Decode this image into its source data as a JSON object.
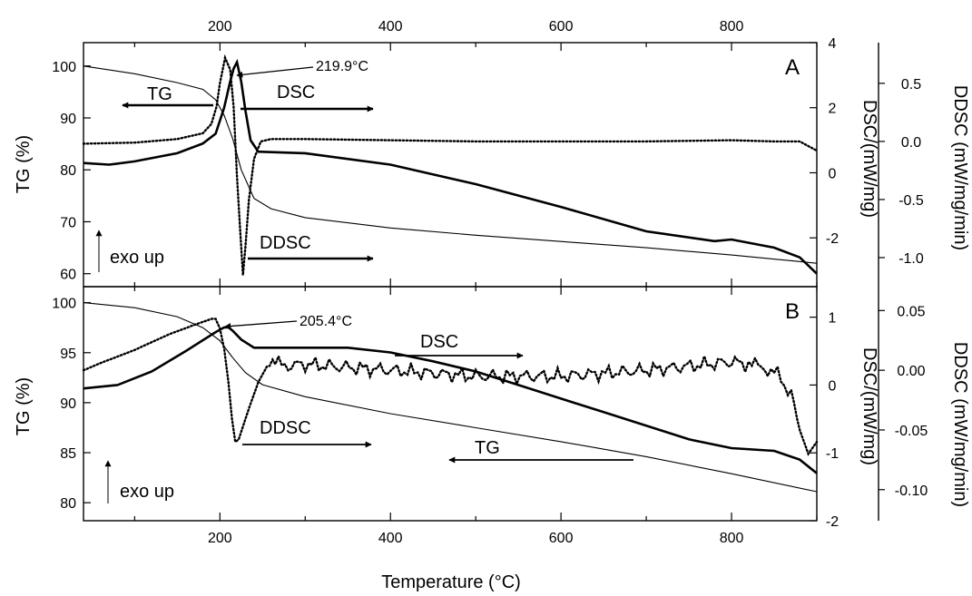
{
  "chart_data": {
    "type": "line",
    "xlabel": "Temperature (°C)",
    "x_top_ticks": [
      "200",
      "400",
      "600",
      "800"
    ],
    "x_bottom_ticks": [
      "200",
      "400",
      "600",
      "800"
    ],
    "xlim": [
      40,
      900
    ],
    "panels": [
      {
        "id": "A",
        "letter": "A",
        "left_axis": {
          "label": "TG (%)",
          "ticks": [
            "100",
            "90",
            "80",
            "70",
            "60"
          ],
          "ylim": [
            57.5,
            104.5
          ]
        },
        "right_axis": {
          "label": "DSC/(mW/mg)",
          "ticks": [
            "4",
            "2",
            "0",
            "-2"
          ],
          "ylim": [
            -3.5,
            4
          ]
        },
        "far_right_axis": {
          "label": "DDSC (mW/mg/min)",
          "ticks": [
            "0.5",
            "0.0",
            "-0.5",
            "-1.0"
          ],
          "ylim": [
            -1.25,
            0.85
          ]
        },
        "peak_label": "219.9°C",
        "exo_label": "exo up",
        "arrow_labels": {
          "tg": "TG",
          "dsc": "DSC",
          "ddsc": "DDSC"
        },
        "series": [
          {
            "name": "TG",
            "axis": "left",
            "style": "thin",
            "x": [
              40,
              100,
              150,
              180,
              195,
              205,
              215,
              225,
              240,
              260,
              300,
              400,
              500,
              600,
              700,
              800,
              900
            ],
            "y": [
              100,
              98.5,
              96.8,
              95.5,
              93.5,
              90.5,
              86,
              80,
              74.5,
              72.5,
              70.8,
              68.8,
              67.4,
              66.2,
              65,
              63.6,
              62
            ]
          },
          {
            "name": "DSC",
            "axis": "right",
            "style": "thick",
            "x": [
              40,
              70,
              100,
              150,
              180,
              195,
              205,
              212,
              216,
              220,
              225,
              230,
              236,
              245,
              300,
              400,
              500,
              600,
              700,
              780,
              800,
              850,
              880,
              900
            ],
            "y": [
              0.3,
              0.25,
              0.35,
              0.6,
              0.9,
              1.2,
              2.0,
              2.8,
              3.2,
              3.4,
              2.8,
              1.9,
              1.0,
              0.65,
              0.6,
              0.25,
              -0.35,
              -1.05,
              -1.8,
              -2.1,
              -2.05,
              -2.3,
              -2.6,
              -3.1
            ]
          },
          {
            "name": "DDSC",
            "axis": "far_right",
            "style": "dotted",
            "x": [
              40,
              100,
              150,
              180,
              190,
              196,
              200,
              206,
              212,
              216,
              220,
              224,
              227,
              230,
              234,
              240,
              248,
              260,
              300,
              400,
              500,
              600,
              700,
              800,
              850,
              880,
              900
            ],
            "y": [
              -0.02,
              -0.01,
              0.02,
              0.07,
              0.15,
              0.3,
              0.5,
              0.72,
              0.62,
              0.3,
              -0.3,
              -0.8,
              -1.15,
              -0.9,
              -0.5,
              -0.15,
              0.0,
              0.02,
              0.02,
              0.01,
              0.0,
              0.0,
              0.0,
              0.01,
              0.0,
              0.0,
              -0.08
            ]
          }
        ]
      },
      {
        "id": "B",
        "letter": "B",
        "left_axis": {
          "label": "TG (%)",
          "ticks": [
            "100",
            "95",
            "90",
            "85",
            "80"
          ],
          "ylim": [
            78.2,
            101.6
          ]
        },
        "right_axis": {
          "label": "DSC/(mW/mg)",
          "ticks": [
            "1",
            "0",
            "-1",
            "-2"
          ],
          "ylim": [
            -2,
            1.45
          ]
        },
        "far_right_axis": {
          "label": "DDSC (mW/mg/min)",
          "ticks": [
            "0.05",
            "0.00",
            "-0.05",
            "-0.10"
          ],
          "ylim": [
            -0.126,
            0.07
          ]
        },
        "peak_label": "205.4°C",
        "exo_label": "exo up",
        "arrow_labels": {
          "tg": "TG",
          "dsc": "DSC",
          "ddsc": "DDSC"
        },
        "series": [
          {
            "name": "TG",
            "axis": "left",
            "style": "thin",
            "x": [
              40,
              100,
              150,
              180,
              200,
              215,
              230,
              250,
              300,
              400,
              500,
              600,
              700,
              800,
              900
            ],
            "y": [
              100,
              99.5,
              98.6,
              97.5,
              96.2,
              94.5,
              93,
              91.8,
              90.6,
              88.9,
              87.5,
              86.1,
              84.6,
              82.9,
              81.1
            ]
          },
          {
            "name": "DSC",
            "axis": "right",
            "style": "thick",
            "x": [
              40,
              80,
              120,
              160,
              195,
              205,
              210,
              215,
              225,
              240,
              260,
              300,
              350,
              400,
              450,
              500,
              550,
              600,
              650,
              700,
              750,
              800,
              850,
              880,
              900
            ],
            "y": [
              -0.05,
              0.0,
              0.2,
              0.5,
              0.78,
              0.85,
              0.85,
              0.8,
              0.67,
              0.55,
              0.55,
              0.55,
              0.55,
              0.48,
              0.35,
              0.2,
              0.0,
              -0.2,
              -0.4,
              -0.6,
              -0.8,
              -0.93,
              -0.97,
              -1.1,
              -1.3
            ]
          },
          {
            "name": "DDSC",
            "axis": "far_right",
            "style": "dotted",
            "x": [
              40,
              60,
              100,
              140,
              170,
              190,
              195,
              200,
              205,
              210,
              214,
              218,
              222,
              228,
              235,
              245,
              255,
              265,
              280,
              300,
              400,
              500,
              600,
              700,
              800,
              820,
              850,
              870,
              880,
              890,
              900
            ],
            "y": [
              0.0,
              0.006,
              0.017,
              0.03,
              0.038,
              0.043,
              0.043,
              0.035,
              0.018,
              -0.01,
              -0.04,
              -0.06,
              -0.058,
              -0.045,
              -0.03,
              -0.01,
              0.003,
              0.005,
              0.004,
              0.005,
              0.0,
              -0.005,
              -0.005,
              0.0,
              0.007,
              0.005,
              0.0,
              -0.02,
              -0.05,
              -0.07,
              -0.06
            ]
          }
        ]
      }
    ]
  }
}
